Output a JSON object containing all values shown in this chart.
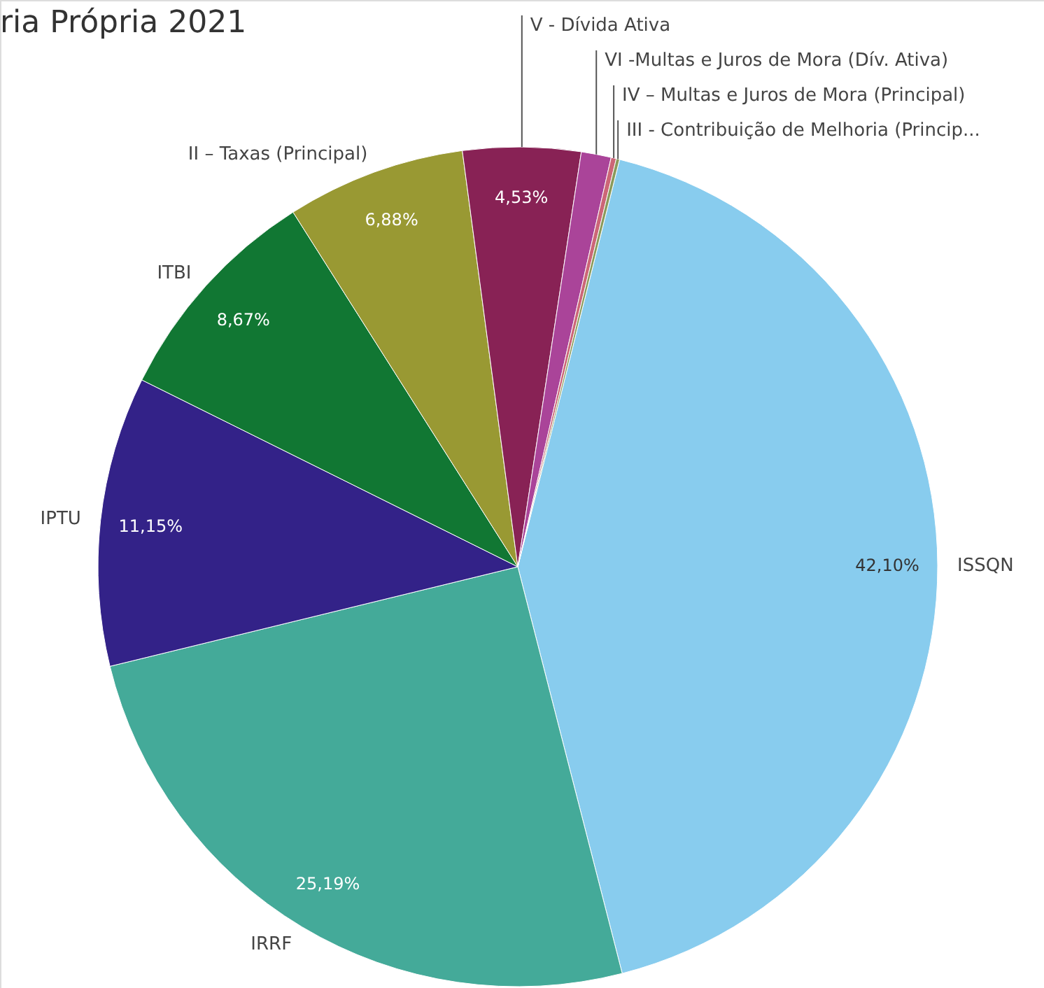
{
  "chart_data": {
    "type": "pie",
    "title": "ria Própria 2021",
    "categories": [
      "ISSQN",
      "IRRF",
      "IPTU",
      "ITBI",
      "II – Taxas (Principal)",
      "V - Dívida Ativa",
      "VI -Multas e Juros de Mora (Dív. Ativa)",
      "IV – Multas e Juros de Mora (Principal)",
      "III - Contribuição de Melhoria (Princip..."
    ],
    "values": [
      42.1,
      25.19,
      11.15,
      8.67,
      6.88,
      4.53,
      1.15,
      0.2,
      0.13
    ],
    "colors": [
      "#88ccee",
      "#44aa99",
      "#332288",
      "#117733",
      "#999933",
      "#882255",
      "#aa4499",
      "#cc6677",
      "#8a9a5b"
    ],
    "value_labels": [
      "42,10%",
      "25,19%",
      "11,15%",
      "8,67%",
      "6,88%",
      "4,53%",
      null,
      null,
      null
    ]
  }
}
